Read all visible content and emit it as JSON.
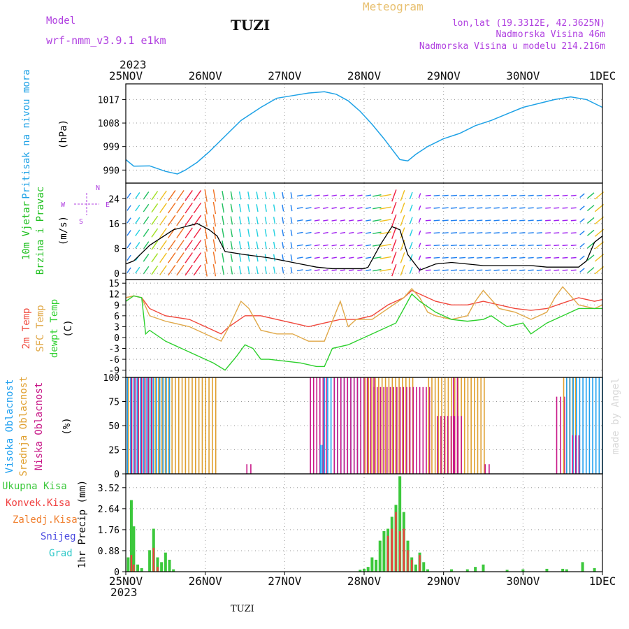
{
  "header": {
    "model_label": "Model",
    "model_name": "wrf-nmm_v3.9.1 e1km",
    "station": "TUZI",
    "product": "Meteogram",
    "coords": "lon,lat (19.3312E, 42.3625N)",
    "elevation": "Nadmorska Visina 46m",
    "model_elevation": "Nadmorska Visina u modelu 214.216m",
    "year_top": "2023",
    "year_bottom": "2023",
    "footer_station": "TUZI",
    "credit": "made by Angel"
  },
  "colors": {
    "pressure": "#1fa2e6",
    "temp2m": "#f0483c",
    "sfc_temp": "#e0a848",
    "dewpt": "#2ed02e",
    "high_cloud": "#20a0f0",
    "mid_cloud": "#e0a030",
    "low_cloud": "#c81888",
    "total_precip": "#3cc83c",
    "conv_precip": "#f04040",
    "freezing_precip": "#f08030",
    "snow": "#4848e0",
    "hail": "#30c8c8",
    "wind_lbl": "#20c020",
    "purple_text": "#b040e0",
    "gold_text": "#e8c070"
  },
  "chart_data": [
    {
      "type": "line",
      "panel": "pressure",
      "title_lines": [
        "Pritisak na nivou mora"
      ],
      "unit": "(hPa)",
      "x_ticks": [
        "25NOV",
        "26NOV",
        "27NOV",
        "28NOV",
        "29NOV",
        "30NOV",
        "1DEC"
      ],
      "ylim": [
        985,
        1023
      ],
      "y_ticks": [
        990,
        999,
        1008,
        1017
      ],
      "grid": true,
      "series": [
        {
          "x": [
            0,
            0.1,
            0.3,
            0.5,
            0.65,
            0.75,
            0.9,
            1.05,
            1.25,
            1.45,
            1.7,
            1.9,
            2.1,
            2.3,
            2.5,
            2.65,
            2.8,
            2.95,
            3.1,
            3.25,
            3.35,
            3.45,
            3.55,
            3.65,
            3.8,
            4.0,
            4.2,
            4.4,
            4.6,
            4.8,
            5.0,
            5.2,
            5.4,
            5.6,
            5.8,
            6.0
          ],
          "values": [
            994,
            991.5,
            991.6,
            989.5,
            988.5,
            990,
            993,
            997,
            1003,
            1009,
            1014,
            1017.5,
            1018.5,
            1019.5,
            1020,
            1019,
            1016.5,
            1012.5,
            1007.5,
            1002,
            998,
            994,
            993.5,
            996,
            999,
            1002,
            1004,
            1007,
            1009,
            1011.5,
            1014,
            1015.5,
            1017,
            1018,
            1017,
            1014
          ]
        }
      ]
    },
    {
      "type": "line",
      "panel": "wind",
      "title_lines": [
        "10m Vjetar",
        "Brzina i Pravac"
      ],
      "unit": "(m/s)",
      "compass": [
        "N",
        "W",
        "E",
        "S"
      ],
      "ylim": [
        -2,
        29
      ],
      "y_ticks": [
        0,
        8,
        16,
        24
      ],
      "grid": true,
      "series": [
        {
          "name": "speed",
          "x": [
            0,
            0.1,
            0.3,
            0.6,
            0.9,
            1.05,
            1.15,
            1.25,
            1.5,
            1.8,
            2.0,
            2.2,
            2.4,
            2.6,
            2.8,
            3.0,
            3.05,
            3.2,
            3.35,
            3.45,
            3.55,
            3.7,
            3.9,
            4.1,
            4.3,
            4.5,
            4.7,
            4.9,
            5.1,
            5.3,
            5.5,
            5.7,
            5.8,
            5.9,
            6.0
          ],
          "values": [
            3,
            4,
            9,
            14,
            16,
            14,
            12,
            7,
            6,
            5,
            4,
            3,
            2,
            1.5,
            1.5,
            1.5,
            2,
            9,
            15,
            14,
            6,
            1,
            3,
            3.5,
            3,
            2.5,
            2.5,
            2.5,
            2.5,
            2,
            2,
            2,
            4,
            10,
            12
          ]
        }
      ],
      "arrow_color_scale": [
        "#a020f0",
        "#2080f0",
        "#20d0e0",
        "#20c060",
        "#a0e020",
        "#f0c020",
        "#f07020",
        "#f02040"
      ]
    },
    {
      "type": "line",
      "panel": "temperature",
      "title_lines": [
        "2m Temp",
        "SFC Temp",
        "dewpt Temp"
      ],
      "unit": "(C)",
      "ylim": [
        -11,
        16
      ],
      "y_ticks": [
        -9,
        -6,
        -3,
        0,
        3,
        6,
        9,
        12,
        15
      ],
      "grid": true,
      "series": [
        {
          "name": "2m Temp",
          "x": [
            0,
            0.1,
            0.2,
            0.3,
            0.5,
            0.8,
            1.0,
            1.2,
            1.3,
            1.5,
            1.7,
            1.9,
            2.1,
            2.3,
            2.5,
            2.7,
            2.9,
            3.1,
            3.3,
            3.5,
            3.6,
            3.7,
            3.9,
            4.1,
            4.3,
            4.5,
            4.7,
            4.9,
            5.1,
            5.3,
            5.5,
            5.7,
            5.9,
            6.0
          ],
          "values": [
            11,
            11.5,
            11,
            8,
            6,
            5,
            3,
            1,
            3,
            6,
            6,
            5,
            4,
            3,
            4,
            5,
            5,
            6,
            9,
            11,
            13,
            12,
            10,
            9,
            9,
            10,
            9,
            8,
            7.5,
            8,
            9.5,
            11,
            10,
            10.5
          ]
        },
        {
          "name": "SFC Temp",
          "x": [
            0,
            0.1,
            0.2,
            0.3,
            0.5,
            0.8,
            1.0,
            1.2,
            1.3,
            1.45,
            1.55,
            1.7,
            1.9,
            2.1,
            2.3,
            2.5,
            2.7,
            2.8,
            2.9,
            3.1,
            3.3,
            3.5,
            3.6,
            3.7,
            3.8,
            3.9,
            4.1,
            4.3,
            4.4,
            4.5,
            4.7,
            4.9,
            5.1,
            5.3,
            5.4,
            5.5,
            5.7,
            5.9,
            6.0
          ],
          "values": [
            11,
            11.5,
            11,
            6,
            4.5,
            3,
            1,
            -1,
            3,
            10,
            8,
            2,
            1,
            1,
            -1,
            -1,
            10,
            3,
            5,
            5,
            8,
            11,
            13.5,
            11,
            7,
            6,
            5,
            6,
            10,
            13,
            8,
            7,
            5,
            7,
            11,
            14,
            9,
            8,
            9
          ]
        },
        {
          "name": "dewpt Temp",
          "x": [
            0,
            0.1,
            0.2,
            0.25,
            0.3,
            0.5,
            0.7,
            0.9,
            1.1,
            1.25,
            1.4,
            1.5,
            1.6,
            1.7,
            1.8,
            2.0,
            2.2,
            2.4,
            2.5,
            2.6,
            2.8,
            3.0,
            3.2,
            3.4,
            3.55,
            3.6,
            3.7,
            3.9,
            4.1,
            4.3,
            4.5,
            4.6,
            4.8,
            5.0,
            5.1,
            5.3,
            5.5,
            5.7,
            6.0
          ],
          "values": [
            10,
            11.5,
            11,
            1,
            2,
            -1,
            -3,
            -5,
            -7,
            -9,
            -5,
            -2,
            -3,
            -6,
            -6,
            -6.5,
            -7,
            -8,
            -8,
            -3,
            -2,
            0,
            2,
            4,
            10,
            12,
            10,
            7,
            5,
            4.5,
            5,
            6,
            3,
            4,
            1,
            4,
            6,
            8,
            8
          ]
        }
      ]
    },
    {
      "type": "bar",
      "panel": "cloud",
      "title_lines": [
        "Visoka Oblacnost",
        "Srednja Oblacnost",
        "Niska Oblacnost"
      ],
      "unit": "(%)",
      "ylim": [
        0,
        100
      ],
      "y_ticks": [
        0,
        25,
        50,
        75,
        100
      ],
      "grid": true,
      "segments": [
        {
          "layer": "mid",
          "x_from": 0.02,
          "x_to": 1.12,
          "value": 100
        },
        {
          "layer": "high",
          "x_from": 0.02,
          "x_to": 0.55,
          "value": 100
        },
        {
          "layer": "low",
          "x_from": 0.05,
          "x_to": 0.3,
          "value": 100
        },
        {
          "layer": "low",
          "x_from": 1.5,
          "x_to": 1.55,
          "value": 10
        },
        {
          "layer": "low",
          "x_from": 2.3,
          "x_to": 2.5,
          "value": 100
        },
        {
          "layer": "high",
          "x_from": 2.5,
          "x_to": 3.0,
          "value": 100
        },
        {
          "layer": "high",
          "x_from": 2.45,
          "x_to": 2.47,
          "value": 30
        },
        {
          "layer": "low",
          "x_from": 2.6,
          "x_to": 3.1,
          "value": 100
        },
        {
          "layer": "mid",
          "x_from": 3.0,
          "x_to": 3.6,
          "value": 100
        },
        {
          "layer": "low",
          "x_from": 3.1,
          "x_to": 3.8,
          "value": 90
        },
        {
          "layer": "mid",
          "x_from": 3.8,
          "x_to": 4.5,
          "value": 100
        },
        {
          "layer": "low",
          "x_from": 3.9,
          "x_to": 4.2,
          "value": 60
        },
        {
          "layer": "low",
          "x_from": 4.1,
          "x_to": 4.15,
          "value": 100
        },
        {
          "layer": "low",
          "x_from": 4.5,
          "x_to": 4.55,
          "value": 10
        },
        {
          "layer": "low",
          "x_from": 5.4,
          "x_to": 5.5,
          "value": 80
        },
        {
          "layer": "mid",
          "x_from": 5.5,
          "x_to": 5.65,
          "value": 100
        },
        {
          "layer": "high",
          "x_from": 5.55,
          "x_to": 6.0,
          "value": 100
        },
        {
          "layer": "low",
          "x_from": 5.6,
          "x_to": 5.68,
          "value": 40
        }
      ]
    },
    {
      "type": "bar",
      "panel": "precip",
      "legend": [
        "Ukupna Kisa",
        "Konvek.Kisa",
        "Zaledj.Kisa",
        "Snijeg",
        "Grad"
      ],
      "unit": "1hr Precip (mm)",
      "ylim": [
        0,
        4.1
      ],
      "y_ticks": [
        0,
        0.88,
        1.76,
        2.64,
        3.52
      ],
      "grid": true,
      "x_ticks": [
        "25NOV",
        "26NOV",
        "27NOV",
        "28NOV",
        "29NOV",
        "30NOV",
        "1DEC"
      ],
      "series": [
        {
          "name": "Ukupna Kisa",
          "x": [
            0.03,
            0.07,
            0.1,
            0.15,
            0.2,
            0.3,
            0.35,
            0.4,
            0.45,
            0.5,
            0.55,
            0.6,
            2.95,
            3.0,
            3.05,
            3.1,
            3.15,
            3.2,
            3.25,
            3.3,
            3.35,
            3.4,
            3.45,
            3.5,
            3.55,
            3.6,
            3.65,
            3.7,
            3.75,
            3.8,
            4.1,
            4.3,
            4.4,
            4.5,
            4.8,
            5.0,
            5.3,
            5.5,
            5.55,
            5.75,
            5.9
          ],
          "values": [
            0.6,
            3.0,
            1.9,
            0.3,
            0.15,
            0.9,
            1.8,
            0.6,
            0.4,
            0.8,
            0.5,
            0.1,
            0.08,
            0.12,
            0.2,
            0.6,
            0.5,
            1.3,
            1.7,
            1.8,
            2.3,
            2.8,
            4.0,
            2.5,
            1.3,
            0.6,
            0.3,
            0.8,
            0.4,
            0.1,
            0.1,
            0.1,
            0.2,
            0.3,
            0.08,
            0.1,
            0.12,
            0.12,
            0.1,
            0.4,
            0.15
          ]
        },
        {
          "name": "Konvek.Kisa",
          "x": [
            0.07,
            0.1,
            0.35,
            0.4,
            3.3,
            3.35,
            3.4,
            3.45,
            3.5,
            3.55,
            3.6,
            3.7
          ],
          "values": [
            0.7,
            0.3,
            1.0,
            0.2,
            1.5,
            1.8,
            2.5,
            1.7,
            1.8,
            0.9,
            0.5,
            0.7
          ]
        }
      ]
    }
  ]
}
